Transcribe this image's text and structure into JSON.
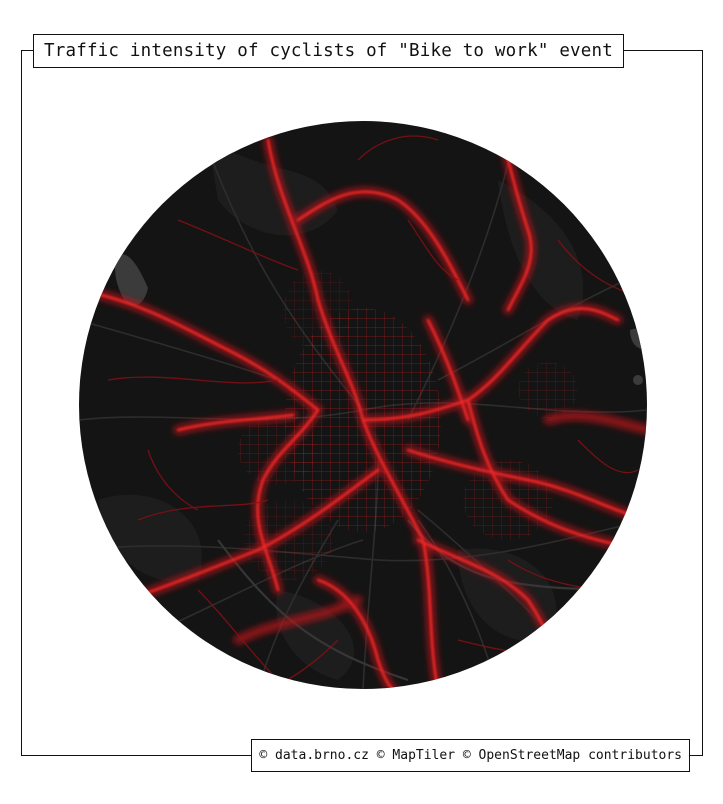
{
  "title": "Traffic intensity of cyclists of \"Bike to work\" event",
  "attribution": "© data.brno.cz © MapTiler © OpenStreetMap contributors",
  "colors": {
    "frame": "#111111",
    "map_background": "#141414",
    "land_patch": "#1e1e1e",
    "water": "#3a3a3a",
    "road": "#2c2c2c",
    "traffic_glow": "#c0141c",
    "traffic_core": "#ff2a2a"
  }
}
